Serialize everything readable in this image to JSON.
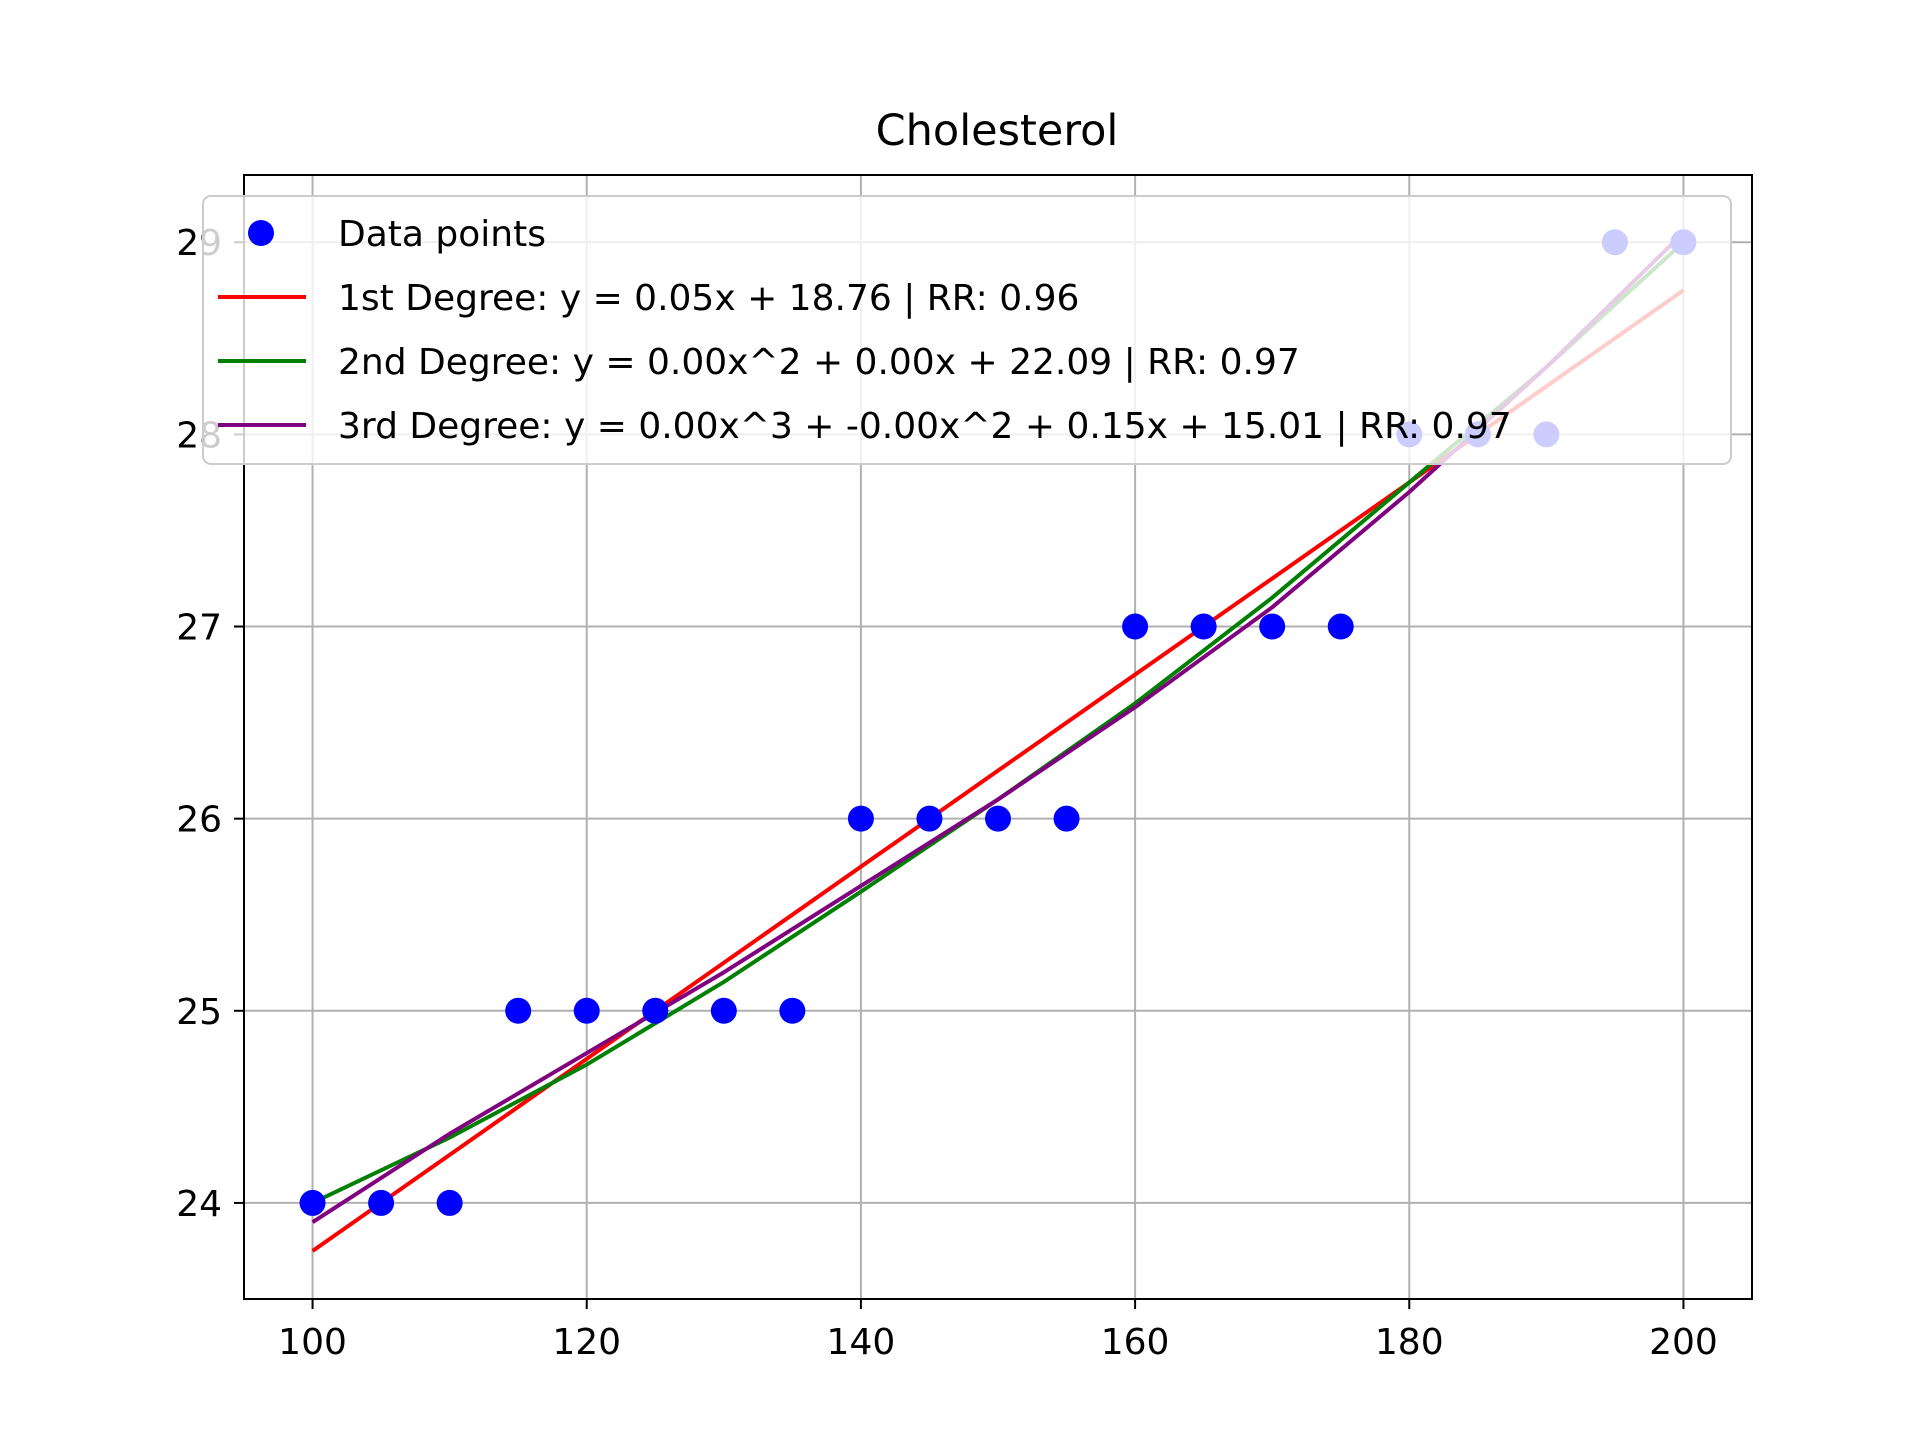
{
  "chart_data": {
    "type": "scatter",
    "title": "Cholesterol",
    "xlabel": "",
    "ylabel": "",
    "xlim": [
      95,
      205
    ],
    "ylim": [
      23.5,
      29.35
    ],
    "xticks": [
      100,
      120,
      140,
      160,
      180,
      200
    ],
    "yticks": [
      24,
      25,
      26,
      27,
      28,
      29
    ],
    "grid": true,
    "legend_position": "upper-left",
    "points": {
      "name": "Data points",
      "color": "#0000ff",
      "x": [
        100,
        105,
        110,
        115,
        120,
        125,
        130,
        135,
        140,
        145,
        150,
        155,
        160,
        165,
        170,
        175,
        180,
        185,
        190,
        195,
        200
      ],
      "y": [
        24,
        24,
        24,
        25,
        25,
        25,
        25,
        25,
        26,
        26,
        26,
        26,
        27,
        27,
        27,
        27,
        28,
        28,
        28,
        29,
        29
      ]
    },
    "fits": [
      {
        "name": "1st Degree: y = 0.05x + 18.76 | RR: 0.96",
        "color": "#ff0000",
        "degree": 1,
        "x": [
          100,
          120,
          140,
          160,
          180,
          200
        ],
        "y": [
          23.75,
          24.75,
          25.75,
          26.75,
          27.75,
          28.75
        ]
      },
      {
        "name": "2nd Degree: y = 0.00x^2 + 0.00x + 22.09 | RR: 0.97",
        "color": "#008000",
        "degree": 2,
        "x": [
          100,
          110,
          120,
          130,
          140,
          150,
          160,
          170,
          180,
          190,
          200
        ],
        "y": [
          24.0,
          24.34,
          24.72,
          25.15,
          25.62,
          26.1,
          26.6,
          27.15,
          27.75,
          28.35,
          29.0
        ]
      },
      {
        "name": "3rd Degree: y = 0.00x^3 + -0.00x^2 + 0.15x + 15.01 | RR: 0.97",
        "color": "#800080",
        "degree": 3,
        "x": [
          100,
          110,
          120,
          130,
          140,
          150,
          160,
          170,
          180,
          190,
          200
        ],
        "y": [
          23.9,
          24.36,
          24.78,
          25.2,
          25.65,
          26.1,
          26.58,
          27.1,
          27.7,
          28.35,
          29.05
        ]
      }
    ]
  }
}
